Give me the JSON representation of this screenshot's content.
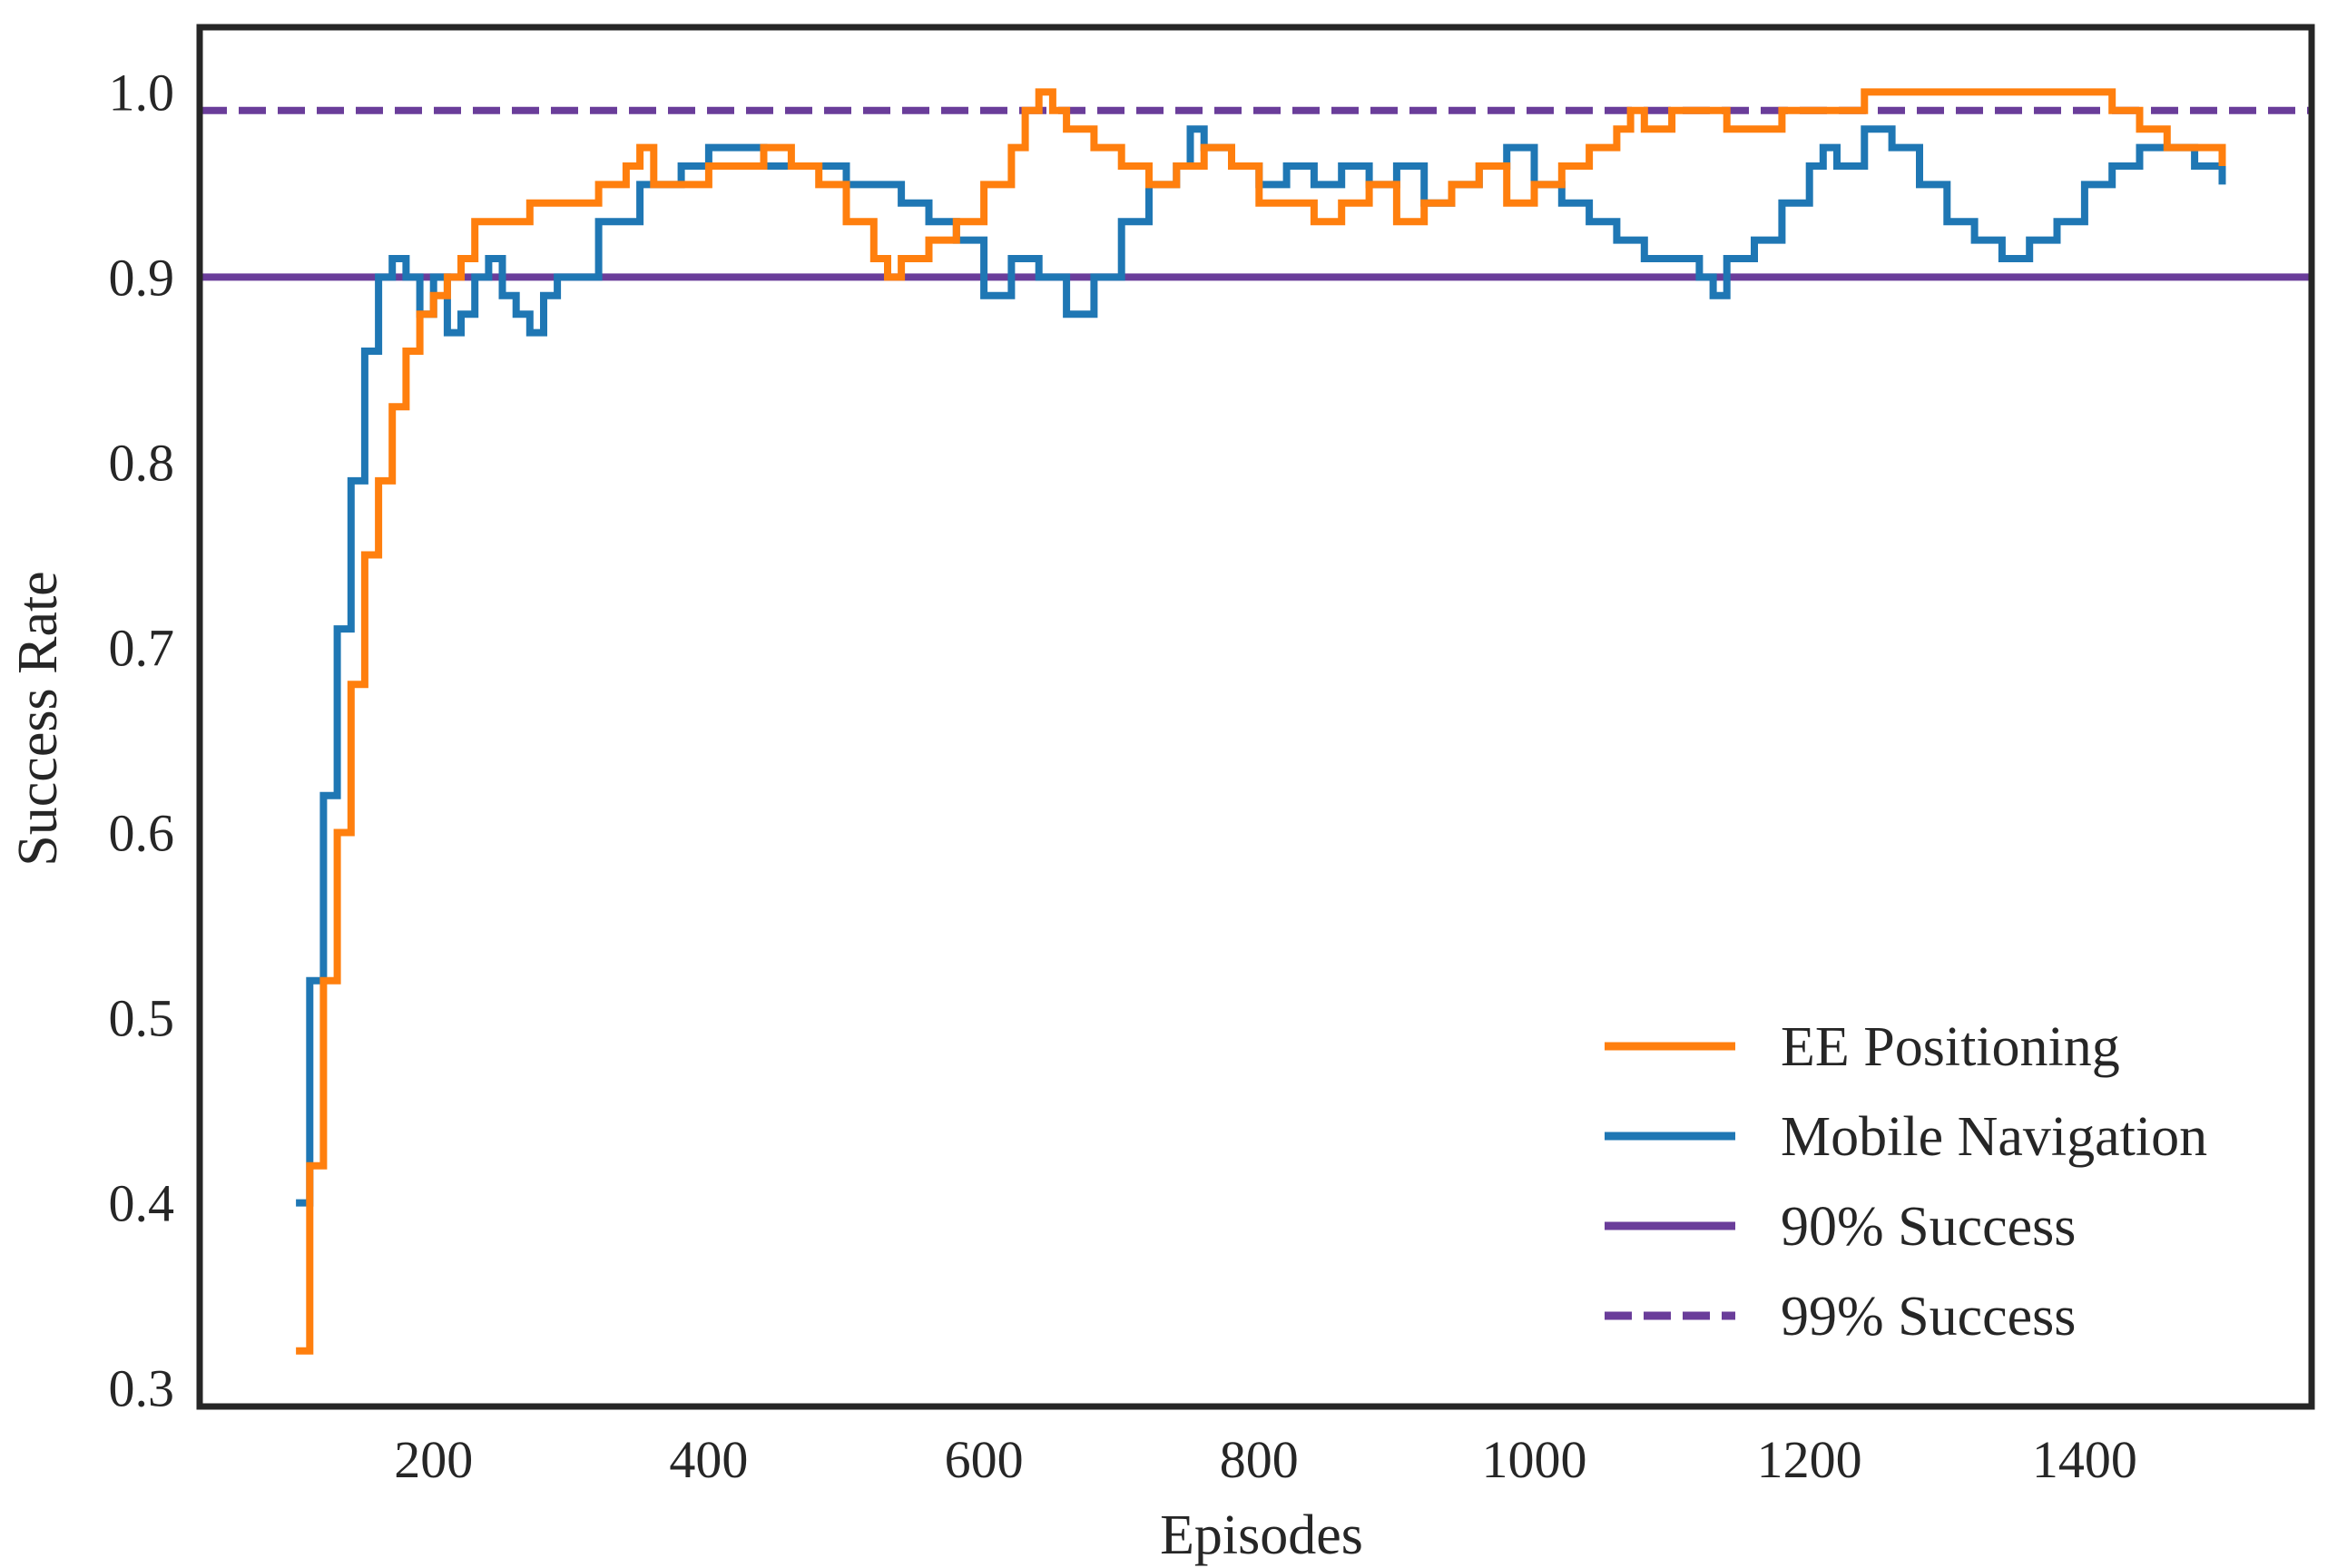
{
  "chart_data": {
    "type": "line",
    "title": "",
    "xlabel": "Episodes",
    "ylabel": "Success Rate",
    "xlim": [
      30,
      1565
    ],
    "ylim": [
      0.29,
      1.035
    ],
    "xticks": [
      200,
      400,
      600,
      800,
      1000,
      1200,
      1400
    ],
    "yticks": [
      0.3,
      0.4,
      0.5,
      0.6,
      0.7,
      0.8,
      0.9,
      1.0
    ],
    "xtick_labels": [
      "200",
      "400",
      "600",
      "800",
      "1000",
      "1200",
      "1400"
    ],
    "ytick_labels": [
      "0.3",
      "0.4",
      "0.5",
      "0.6",
      "0.7",
      "0.8",
      "0.9",
      "1.0"
    ],
    "legend_position": "lower-right",
    "grid": false,
    "series": [
      {
        "name": "EE Positioning",
        "color": "#ff7f0e",
        "style": "solid",
        "x": [
          100,
          110,
          120,
          130,
          140,
          150,
          160,
          170,
          180,
          190,
          200,
          210,
          220,
          230,
          240,
          250,
          260,
          270,
          280,
          290,
          300,
          320,
          340,
          350,
          360,
          380,
          400,
          420,
          440,
          460,
          480,
          500,
          520,
          530,
          540,
          560,
          580,
          600,
          620,
          630,
          640,
          650,
          660,
          680,
          700,
          720,
          740,
          760,
          780,
          800,
          820,
          840,
          860,
          880,
          900,
          920,
          940,
          960,
          980,
          1000,
          1020,
          1040,
          1060,
          1070,
          1080,
          1100,
          1120,
          1140,
          1160,
          1180,
          1200,
          1220,
          1240,
          1260,
          1280,
          1300,
          1320,
          1340,
          1360,
          1380,
          1400,
          1420,
          1440,
          1460,
          1480,
          1500
        ],
        "values": [
          0.32,
          0.42,
          0.52,
          0.6,
          0.68,
          0.75,
          0.79,
          0.83,
          0.86,
          0.88,
          0.89,
          0.9,
          0.91,
          0.93,
          0.93,
          0.93,
          0.93,
          0.94,
          0.94,
          0.94,
          0.94,
          0.95,
          0.96,
          0.97,
          0.95,
          0.95,
          0.96,
          0.96,
          0.97,
          0.96,
          0.95,
          0.93,
          0.91,
          0.9,
          0.91,
          0.92,
          0.93,
          0.95,
          0.97,
          0.99,
          1.0,
          0.99,
          0.98,
          0.97,
          0.96,
          0.95,
          0.96,
          0.97,
          0.96,
          0.94,
          0.94,
          0.93,
          0.94,
          0.95,
          0.93,
          0.94,
          0.95,
          0.96,
          0.94,
          0.95,
          0.96,
          0.97,
          0.98,
          0.99,
          0.98,
          0.99,
          0.99,
          0.98,
          0.98,
          0.99,
          0.99,
          0.99,
          1.0,
          1.0,
          1.0,
          1.0,
          1.0,
          1.0,
          1.0,
          1.0,
          1.0,
          0.99,
          0.98,
          0.97,
          0.97,
          0.96
        ]
      },
      {
        "name": "Mobile Navigation",
        "color": "#1f77b4",
        "style": "solid",
        "x": [
          100,
          110,
          120,
          130,
          140,
          150,
          160,
          170,
          180,
          190,
          200,
          210,
          220,
          230,
          240,
          250,
          260,
          270,
          280,
          290,
          300,
          320,
          340,
          350,
          360,
          380,
          400,
          420,
          440,
          460,
          480,
          500,
          520,
          540,
          560,
          580,
          600,
          620,
          640,
          660,
          680,
          700,
          720,
          740,
          750,
          760,
          780,
          800,
          820,
          840,
          860,
          880,
          900,
          920,
          940,
          960,
          980,
          1000,
          1020,
          1040,
          1060,
          1080,
          1100,
          1120,
          1130,
          1140,
          1160,
          1180,
          1200,
          1210,
          1220,
          1240,
          1260,
          1280,
          1300,
          1320,
          1340,
          1360,
          1380,
          1400,
          1420,
          1440,
          1460,
          1480,
          1500
        ],
        "values": [
          0.4,
          0.52,
          0.62,
          0.71,
          0.79,
          0.86,
          0.9,
          0.91,
          0.9,
          0.88,
          0.9,
          0.87,
          0.88,
          0.9,
          0.91,
          0.89,
          0.88,
          0.87,
          0.89,
          0.9,
          0.9,
          0.93,
          0.93,
          0.95,
          0.95,
          0.96,
          0.97,
          0.97,
          0.96,
          0.96,
          0.96,
          0.95,
          0.95,
          0.94,
          0.93,
          0.92,
          0.89,
          0.91,
          0.9,
          0.88,
          0.9,
          0.93,
          0.95,
          0.96,
          0.98,
          0.97,
          0.96,
          0.95,
          0.96,
          0.95,
          0.96,
          0.95,
          0.96,
          0.94,
          0.95,
          0.96,
          0.97,
          0.95,
          0.94,
          0.93,
          0.92,
          0.91,
          0.91,
          0.9,
          0.89,
          0.91,
          0.92,
          0.94,
          0.96,
          0.97,
          0.96,
          0.98,
          0.97,
          0.95,
          0.93,
          0.92,
          0.91,
          0.92,
          0.93,
          0.95,
          0.96,
          0.97,
          0.97,
          0.96,
          0.95
        ]
      },
      {
        "name": "90% Success",
        "color": "#6a3d9a",
        "style": "solid",
        "y": 0.9
      },
      {
        "name": "99% Success",
        "color": "#6a3d9a",
        "style": "dashed",
        "y": 0.99
      }
    ]
  }
}
